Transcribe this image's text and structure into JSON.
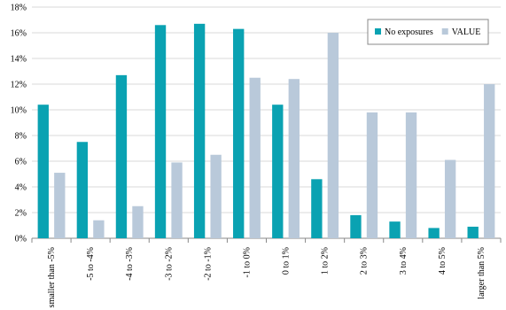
{
  "chart_data": {
    "type": "bar",
    "categories": [
      "smaller than -5%",
      "-5 to -4%",
      "-4 to -3%",
      "-3 to -2%",
      "-2 to -1%",
      "-1 to 0%",
      "0 to 1%",
      "1 to 2%",
      "2 to 3%",
      "3 to 4%",
      "4 to 5%",
      "larger than 5%"
    ],
    "series": [
      {
        "name": "No exposures",
        "color": "#0aa2b2",
        "values": [
          10.4,
          7.5,
          12.7,
          16.6,
          16.7,
          16.3,
          10.4,
          4.6,
          1.8,
          1.3,
          0.8,
          0.9
        ]
      },
      {
        "name": "VALUE",
        "color": "#b9c9da",
        "values": [
          5.1,
          1.4,
          2.5,
          5.9,
          6.5,
          12.5,
          12.4,
          16.0,
          9.8,
          9.8,
          6.1,
          12.0
        ]
      }
    ],
    "ylim": [
      0,
      18
    ],
    "yticks": [
      {
        "value": 0,
        "label": "0%"
      },
      {
        "value": 2,
        "label": "2%"
      },
      {
        "value": 4,
        "label": "4%"
      },
      {
        "value": 6,
        "label": "6%"
      },
      {
        "value": 8,
        "label": "8%"
      },
      {
        "value": 10,
        "label": "10%"
      },
      {
        "value": 12,
        "label": "12%"
      },
      {
        "value": 14,
        "label": "14%"
      },
      {
        "value": 16,
        "label": "16%"
      },
      {
        "value": 18,
        "label": "18%"
      }
    ],
    "grid": true,
    "legend": "top-right"
  }
}
